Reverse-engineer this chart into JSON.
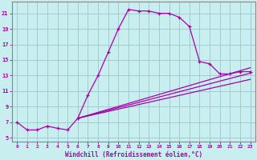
{
  "xlabel": "Windchill (Refroidissement éolien,°C)",
  "bg_color": "#c8eef0",
  "grid_color": "#a0ccd0",
  "line_color": "#aa00aa",
  "spine_color": "#888888",
  "xlim": [
    -0.5,
    23.5
  ],
  "ylim": [
    4.5,
    22.5
  ],
  "xticks": [
    0,
    1,
    2,
    3,
    4,
    5,
    6,
    7,
    8,
    9,
    10,
    11,
    12,
    13,
    14,
    15,
    16,
    17,
    18,
    19,
    20,
    21,
    22,
    23
  ],
  "yticks": [
    5,
    7,
    9,
    11,
    13,
    15,
    17,
    19,
    21
  ],
  "line1_x": [
    0,
    1,
    2,
    3,
    4,
    5,
    6,
    7,
    8,
    9,
    10,
    11,
    12,
    13,
    14,
    15,
    16,
    17,
    18,
    19,
    20,
    21,
    22,
    23
  ],
  "line1_y": [
    7.0,
    6.0,
    6.0,
    6.5,
    6.2,
    6.0,
    7.5,
    10.5,
    13.0,
    16.0,
    19.0,
    21.5,
    21.3,
    21.3,
    21.0,
    21.0,
    20.5,
    19.3,
    14.8,
    14.5,
    13.2,
    13.2,
    13.5,
    13.5
  ],
  "line2_x": [
    6,
    23
  ],
  "line2_y": [
    7.5,
    14.0
  ],
  "line3_x": [
    6,
    23
  ],
  "line3_y": [
    7.5,
    13.3
  ],
  "line4_x": [
    6,
    23
  ],
  "line4_y": [
    7.5,
    12.5
  ]
}
